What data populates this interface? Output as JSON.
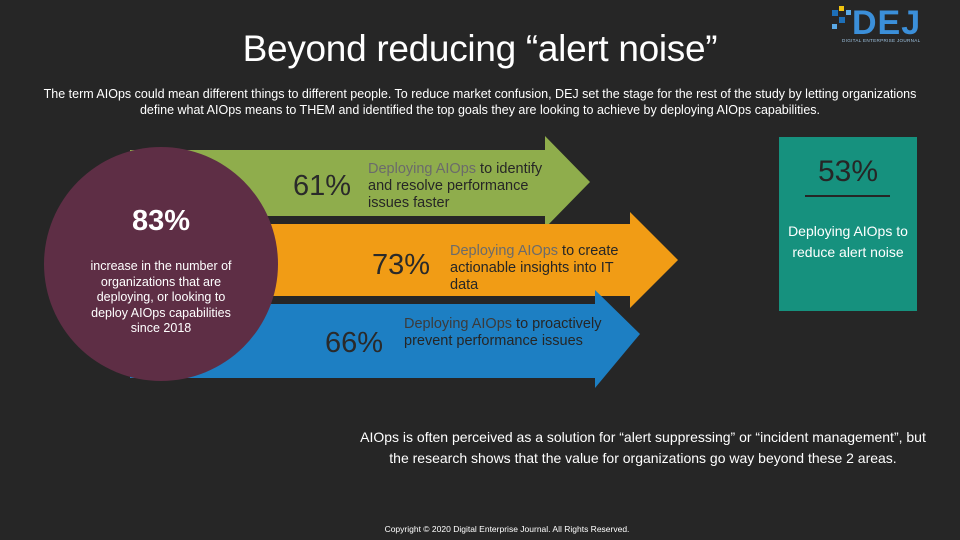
{
  "logo": {
    "text": "DEJ",
    "subtitle": "DIGITAL ENTERPRISE JOURNAL"
  },
  "title": "Beyond reducing “alert noise”",
  "intro": "The term AIOps could mean different things to different people. To reduce market confusion, DEJ set the stage for the rest of the study by letting organizations define what AIOps means to THEM and identified the top goals they are looking to achieve by deploying AIOps capabilities.",
  "circle": {
    "value": "83%",
    "text": "increase in the number of organizations that are deploying, or looking to deploy AIOps capabilities since 2018",
    "color": "#5e2e45"
  },
  "arrows": [
    {
      "value": "61%",
      "lead": "Deploying AIOps",
      "rest": " to identify and resolve performance issues faster",
      "color": "#8fad4c"
    },
    {
      "value": "73%",
      "lead": "Deploying AIOps",
      "rest": " to create actionable insights into IT data",
      "color": "#f19c15"
    },
    {
      "value": "66%",
      "lead": "Deploying AIOps",
      "rest": " to proactively prevent performance issues",
      "color": "#1d7fc3"
    }
  ],
  "highlight": {
    "value": "53%",
    "text": "Deploying AIOps to reduce alert noise",
    "color": "#16917e"
  },
  "note": "AIOps is often perceived as a solution for “alert suppressing” or “incident management”, but the research shows that the value for organizations go way beyond these 2 areas.",
  "copyright": "Copyright © 2020 Digital Enterprise Journal. All Rights Reserved."
}
